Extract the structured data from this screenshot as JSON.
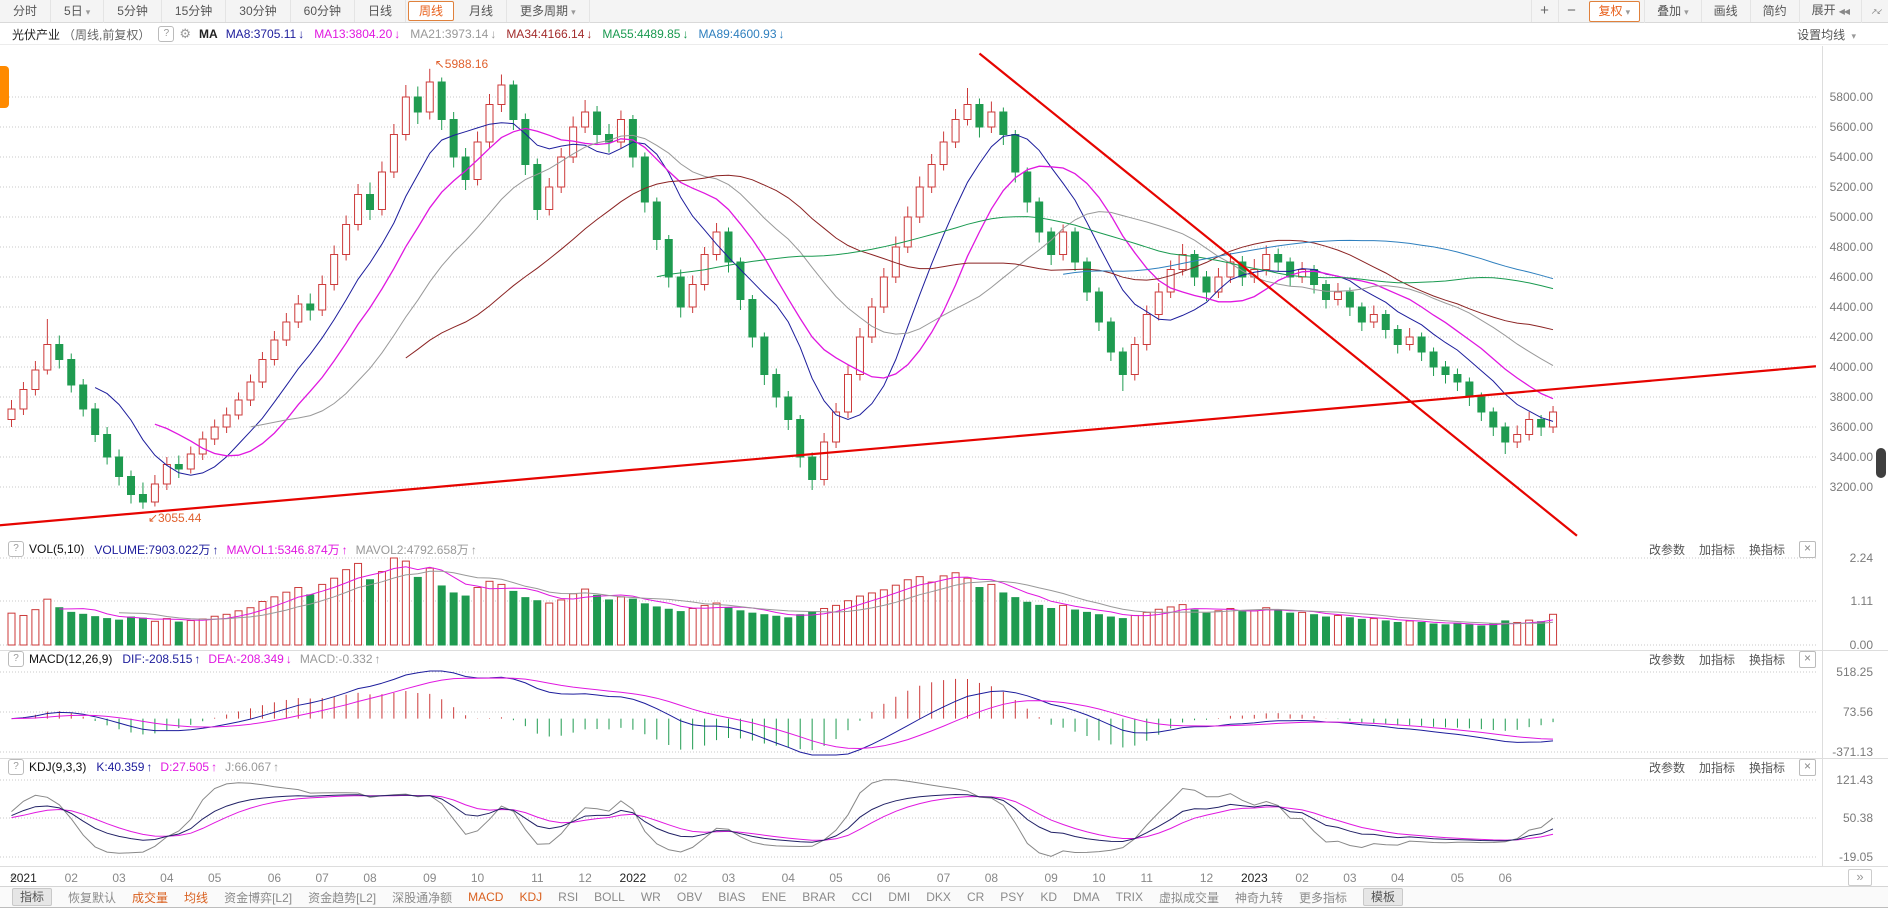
{
  "topbar": {
    "periods": [
      {
        "label": "分时"
      },
      {
        "label": "5日",
        "caret": true
      },
      {
        "label": "5分钟"
      },
      {
        "label": "15分钟"
      },
      {
        "label": "30分钟"
      },
      {
        "label": "60分钟"
      },
      {
        "label": "日线"
      },
      {
        "label": "周线",
        "active": true
      },
      {
        "label": "月线"
      },
      {
        "label": "更多周期",
        "caret": true
      }
    ],
    "zoom_in": "+",
    "zoom_out": "−",
    "right_buttons": [
      {
        "label": "复权",
        "caret": true,
        "accent": true
      },
      {
        "label": "叠加",
        "caret": true
      },
      {
        "label": "画线"
      },
      {
        "label": "简约"
      },
      {
        "label": "展开",
        "expand_icon": true
      }
    ],
    "caret_glyph": "▾",
    "expand_icon": "◀◀",
    "collapse_icon": "↗↙"
  },
  "info_row": {
    "title": "光伏产业",
    "subtitle": "（周线,前复权）",
    "help": "?",
    "gear_icon": "⚙",
    "ma_prefix": "MA",
    "ma_items": [
      {
        "text": "MA8:3705.11",
        "arrow": "↓",
        "color": "#1d1d9c"
      },
      {
        "text": "MA13:3804.20",
        "arrow": "↓",
        "color": "#e018e0"
      },
      {
        "text": "MA21:3973.14",
        "arrow": "↓",
        "color": "#999999"
      },
      {
        "text": "MA34:4166.14",
        "arrow": "↓",
        "color": "#a22c2c"
      },
      {
        "text": "MA55:4489.85",
        "arrow": "↓",
        "color": "#1a9a50"
      },
      {
        "text": "MA89:4600.93",
        "arrow": "↓",
        "color": "#2e7fbe"
      }
    ],
    "right_link": "设置均线"
  },
  "panes": [
    {
      "id": "vol",
      "name": "VOL(5,10)",
      "help": "?",
      "values": [
        {
          "text": "VOLUME:7903.022万",
          "arrow": "↑",
          "color": "#1d1d9c"
        },
        {
          "text": "MAVOL1:5346.874万",
          "arrow": "↑",
          "color": "#e018e0"
        },
        {
          "text": "MAVOL2:4792.658万",
          "arrow": "↑",
          "color": "#999999"
        }
      ],
      "tools": [
        "改参数",
        "加指标",
        "换指标"
      ],
      "close_label": "×",
      "ticks": [
        "2.24",
        "1.11",
        "0.00"
      ]
    },
    {
      "id": "macd",
      "name": "MACD(12,26,9)",
      "help": "?",
      "values": [
        {
          "text": "DIF:-208.515",
          "arrow": "↑",
          "color": "#1d1d9c"
        },
        {
          "text": "DEA:-208.349",
          "arrow": "↓",
          "color": "#e018e0"
        },
        {
          "text": "MACD:-0.332",
          "arrow": "↑",
          "color": "#999999"
        }
      ],
      "tools": [
        "改参数",
        "加指标",
        "换指标"
      ],
      "close_label": "×",
      "ticks": [
        "518.25",
        "73.56",
        "-371.13"
      ]
    },
    {
      "id": "kdj",
      "name": "KDJ(9,3,3)",
      "help": "?",
      "values": [
        {
          "text": "K:40.359",
          "arrow": "↑",
          "color": "#1d1d9c"
        },
        {
          "text": "D:27.505",
          "arrow": "↑",
          "color": "#e018e0"
        },
        {
          "text": "J:66.067",
          "arrow": "↑",
          "color": "#999999"
        }
      ],
      "tools": [
        "改参数",
        "加指标",
        "换指标"
      ],
      "close_label": "×",
      "ticks": [
        "121.43",
        "50.38",
        "-19.05"
      ]
    }
  ],
  "time_axis": {
    "prev": "«",
    "next": "»",
    "labels": [
      {
        "t": "2021",
        "i": 1,
        "year": true
      },
      {
        "t": "02",
        "i": 5
      },
      {
        "t": "03",
        "i": 9
      },
      {
        "t": "04",
        "i": 13
      },
      {
        "t": "05",
        "i": 17
      },
      {
        "t": "06",
        "i": 22
      },
      {
        "t": "07",
        "i": 26
      },
      {
        "t": "08",
        "i": 30
      },
      {
        "t": "09",
        "i": 35
      },
      {
        "t": "10",
        "i": 39
      },
      {
        "t": "11",
        "i": 44
      },
      {
        "t": "12",
        "i": 48
      },
      {
        "t": "2022",
        "i": 52,
        "year": true
      },
      {
        "t": "02",
        "i": 56
      },
      {
        "t": "03",
        "i": 60
      },
      {
        "t": "04",
        "i": 65
      },
      {
        "t": "05",
        "i": 69
      },
      {
        "t": "06",
        "i": 73
      },
      {
        "t": "07",
        "i": 78
      },
      {
        "t": "08",
        "i": 82
      },
      {
        "t": "09",
        "i": 87
      },
      {
        "t": "10",
        "i": 91
      },
      {
        "t": "11",
        "i": 95
      },
      {
        "t": "12",
        "i": 100
      },
      {
        "t": "2023",
        "i": 104,
        "year": true
      },
      {
        "t": "02",
        "i": 108
      },
      {
        "t": "03",
        "i": 112
      },
      {
        "t": "04",
        "i": 116
      },
      {
        "t": "05",
        "i": 121
      },
      {
        "t": "06",
        "i": 125
      }
    ]
  },
  "bottom_bar": {
    "items": [
      {
        "label": "指标",
        "boxed": true
      },
      {
        "label": "恢复默认"
      },
      {
        "label": "成交量",
        "accent": true
      },
      {
        "label": "均线",
        "accent": true
      },
      {
        "label": "资金博弈[L2]"
      },
      {
        "label": "资金趋势[L2]"
      },
      {
        "label": "深股通净额"
      },
      {
        "label": "MACD",
        "accent": true
      },
      {
        "label": "KDJ",
        "accent": true
      },
      {
        "label": "RSI"
      },
      {
        "label": "BOLL"
      },
      {
        "label": "WR"
      },
      {
        "label": "OBV"
      },
      {
        "label": "BIAS"
      },
      {
        "label": "ENE"
      },
      {
        "label": "BRAR"
      },
      {
        "label": "CCI"
      },
      {
        "label": "DMI"
      },
      {
        "label": "DKX"
      },
      {
        "label": "CR"
      },
      {
        "label": "PSY"
      },
      {
        "label": "KD"
      },
      {
        "label": "DMA"
      },
      {
        "label": "TRIX"
      },
      {
        "label": "虚拟成交量"
      },
      {
        "label": "神奇九转"
      },
      {
        "label": "更多指标"
      },
      {
        "label": "模板",
        "boxed": true
      }
    ]
  },
  "colors": {
    "accent_orange": "#e8611c",
    "candle_up": "#cc3a3a",
    "candle_down": "#1f9b50",
    "trend_line": "#e60400",
    "annotation": "#e0612e",
    "navy": "#1d1d9c",
    "magenta": "#e018e0",
    "gray": "#999999",
    "maroon": "#8b2323",
    "green": "#1a9a50",
    "blue": "#2e7fbe"
  },
  "chart_data": {
    "type": "candlestick",
    "title": "光伏产业 周线 前复权",
    "interval": "周线",
    "ylim": [
      2850,
      6150
    ],
    "y_ticks": [
      "5800.00",
      "5600.00",
      "5400.00",
      "5200.00",
      "5000.00",
      "4800.00",
      "4600.00",
      "4400.00",
      "4200.00",
      "4000.00",
      "3800.00",
      "3600.00",
      "3400.00",
      "3200.00"
    ],
    "ma_periods": [
      8,
      13,
      21,
      34,
      55,
      89
    ],
    "vol_ma_periods": [
      5,
      10
    ],
    "macd_params": [
      12,
      26,
      9
    ],
    "kdj_params": [
      9,
      3,
      3
    ],
    "vol_axis": [
      "2.24",
      "1.11",
      "0.00"
    ],
    "vol_axis_max_wan": 22400,
    "macd_axis": [
      518.25,
      73.56,
      -371.13
    ],
    "kdj_axis": [
      121.43,
      50.38,
      -19.05
    ],
    "annotations": [
      {
        "text": "5988.16",
        "price": 5988.16,
        "index": 35,
        "arrow": "↖"
      },
      {
        "text": "3055.44",
        "price": 3055.44,
        "index": 11,
        "arrow": "↙"
      }
    ],
    "trendlines": [
      {
        "from": {
          "index": 81,
          "price": 6090
        },
        "to": {
          "index": 131,
          "price": 2875
        }
      },
      {
        "from": {
          "index": -1,
          "price": 2945
        },
        "to": {
          "index": 151,
          "price": 4005
        }
      }
    ],
    "candles": [
      [
        3650,
        3780,
        3600,
        3720,
        8200
      ],
      [
        3720,
        3900,
        3680,
        3850,
        7600
      ],
      [
        3850,
        4040,
        3810,
        3980,
        9100
      ],
      [
        3980,
        4320,
        3950,
        4150,
        11800
      ],
      [
        4150,
        4210,
        3990,
        4050,
        9600
      ],
      [
        4050,
        4090,
        3830,
        3880,
        8400
      ],
      [
        3880,
        3920,
        3670,
        3720,
        7900
      ],
      [
        3720,
        3760,
        3500,
        3550,
        7300
      ],
      [
        3550,
        3600,
        3350,
        3400,
        6800
      ],
      [
        3400,
        3450,
        3210,
        3270,
        6400
      ],
      [
        3270,
        3310,
        3090,
        3150,
        7200
      ],
      [
        3150,
        3230,
        3055,
        3100,
        6900
      ],
      [
        3100,
        3280,
        3070,
        3220,
        6100
      ],
      [
        3220,
        3400,
        3180,
        3350,
        6800
      ],
      [
        3350,
        3410,
        3260,
        3320,
        5900
      ],
      [
        3320,
        3470,
        3290,
        3420,
        6300
      ],
      [
        3420,
        3570,
        3380,
        3520,
        6700
      ],
      [
        3520,
        3650,
        3480,
        3600,
        7400
      ],
      [
        3600,
        3730,
        3560,
        3680,
        7900
      ],
      [
        3680,
        3830,
        3650,
        3780,
        8800
      ],
      [
        3780,
        3950,
        3740,
        3900,
        9600
      ],
      [
        3900,
        4100,
        3860,
        4050,
        11200
      ],
      [
        4050,
        4240,
        4010,
        4180,
        12400
      ],
      [
        4180,
        4360,
        4140,
        4300,
        13600
      ],
      [
        4300,
        4480,
        4260,
        4420,
        14800
      ],
      [
        4420,
        4490,
        4310,
        4380,
        12900
      ],
      [
        4380,
        4610,
        4340,
        4550,
        15600
      ],
      [
        4550,
        4810,
        4510,
        4750,
        17200
      ],
      [
        4750,
        5010,
        4710,
        4950,
        19400
      ],
      [
        4950,
        5220,
        4910,
        5150,
        21000
      ],
      [
        5150,
        5230,
        4980,
        5050,
        16800
      ],
      [
        5050,
        5370,
        5010,
        5300,
        18900
      ],
      [
        5300,
        5620,
        5260,
        5550,
        22400
      ],
      [
        5550,
        5880,
        5510,
        5800,
        21600
      ],
      [
        5800,
        5870,
        5620,
        5700,
        17400
      ],
      [
        5700,
        5988,
        5650,
        5900,
        19800
      ],
      [
        5900,
        5930,
        5580,
        5650,
        15200
      ],
      [
        5650,
        5700,
        5330,
        5400,
        13400
      ],
      [
        5400,
        5460,
        5180,
        5250,
        12600
      ],
      [
        5250,
        5570,
        5210,
        5500,
        14800
      ],
      [
        5500,
        5820,
        5460,
        5750,
        16400
      ],
      [
        5750,
        5950,
        5700,
        5880,
        15600
      ],
      [
        5880,
        5910,
        5580,
        5650,
        13800
      ],
      [
        5650,
        5690,
        5280,
        5350,
        12200
      ],
      [
        5350,
        5390,
        4980,
        5050,
        11400
      ],
      [
        5050,
        5260,
        5010,
        5200,
        10800
      ],
      [
        5200,
        5460,
        5160,
        5400,
        11600
      ],
      [
        5400,
        5670,
        5360,
        5600,
        13200
      ],
      [
        5600,
        5780,
        5560,
        5700,
        14400
      ],
      [
        5700,
        5740,
        5480,
        5550,
        12800
      ],
      [
        5550,
        5620,
        5430,
        5500,
        11600
      ],
      [
        5500,
        5710,
        5460,
        5650,
        12400
      ],
      [
        5650,
        5680,
        5330,
        5400,
        11800
      ],
      [
        5400,
        5430,
        5030,
        5100,
        10600
      ],
      [
        5100,
        5130,
        4780,
        4850,
        9800
      ],
      [
        4850,
        4880,
        4530,
        4600,
        9200
      ],
      [
        4600,
        4650,
        4330,
        4400,
        8600
      ],
      [
        4400,
        4610,
        4360,
        4550,
        9400
      ],
      [
        4550,
        4800,
        4510,
        4750,
        10200
      ],
      [
        4750,
        4960,
        4710,
        4900,
        10800
      ],
      [
        4900,
        4930,
        4630,
        4700,
        9600
      ],
      [
        4700,
        4730,
        4380,
        4450,
        8800
      ],
      [
        4450,
        4480,
        4130,
        4200,
        8200
      ],
      [
        4200,
        4230,
        3880,
        3950,
        7800
      ],
      [
        3950,
        3990,
        3730,
        3800,
        7400
      ],
      [
        3800,
        3840,
        3580,
        3650,
        7000
      ],
      [
        3650,
        3680,
        3330,
        3400,
        7800
      ],
      [
        3400,
        3430,
        3180,
        3250,
        8600
      ],
      [
        3250,
        3560,
        3210,
        3500,
        9400
      ],
      [
        3500,
        3760,
        3460,
        3700,
        10200
      ],
      [
        3700,
        4010,
        3660,
        3950,
        11400
      ],
      [
        3950,
        4260,
        3910,
        4200,
        12600
      ],
      [
        4200,
        4460,
        4160,
        4400,
        13400
      ],
      [
        4400,
        4660,
        4360,
        4600,
        14200
      ],
      [
        4600,
        4870,
        4560,
        4800,
        15400
      ],
      [
        4800,
        5070,
        4760,
        5000,
        16800
      ],
      [
        5000,
        5270,
        4960,
        5200,
        17600
      ],
      [
        5200,
        5420,
        5160,
        5350,
        16200
      ],
      [
        5350,
        5570,
        5310,
        5500,
        17800
      ],
      [
        5500,
        5720,
        5460,
        5650,
        18600
      ],
      [
        5650,
        5860,
        5610,
        5750,
        17200
      ],
      [
        5750,
        5790,
        5530,
        5600,
        14800
      ],
      [
        5600,
        5770,
        5560,
        5700,
        15600
      ],
      [
        5700,
        5730,
        5480,
        5550,
        13400
      ],
      [
        5550,
        5580,
        5230,
        5300,
        12200
      ],
      [
        5300,
        5330,
        5030,
        5100,
        11000
      ],
      [
        5100,
        5130,
        4830,
        4900,
        10200
      ],
      [
        4900,
        4930,
        4680,
        4750,
        9400
      ],
      [
        4750,
        4950,
        4710,
        4900,
        10200
      ],
      [
        4900,
        4930,
        4640,
        4700,
        9000
      ],
      [
        4700,
        4730,
        4440,
        4500,
        8400
      ],
      [
        4500,
        4530,
        4240,
        4300,
        7800
      ],
      [
        4300,
        4330,
        4040,
        4100,
        7200
      ],
      [
        4100,
        4130,
        3840,
        3950,
        6800
      ],
      [
        3950,
        4200,
        3910,
        4150,
        7600
      ],
      [
        4150,
        4410,
        4110,
        4350,
        8400
      ],
      [
        4350,
        4560,
        4310,
        4500,
        9200
      ],
      [
        4500,
        4710,
        4460,
        4650,
        9800
      ],
      [
        4650,
        4820,
        4610,
        4750,
        10400
      ],
      [
        4750,
        4780,
        4540,
        4600,
        9000
      ],
      [
        4600,
        4640,
        4440,
        4500,
        8200
      ],
      [
        4500,
        4660,
        4460,
        4600,
        8800
      ],
      [
        4600,
        4760,
        4560,
        4700,
        9400
      ],
      [
        4700,
        4740,
        4540,
        4600,
        8600
      ],
      [
        4600,
        4720,
        4560,
        4650,
        8800
      ],
      [
        4650,
        4810,
        4610,
        4750,
        9600
      ],
      [
        4750,
        4790,
        4640,
        4700,
        9000
      ],
      [
        4700,
        4730,
        4540,
        4600,
        8200
      ],
      [
        4600,
        4700,
        4560,
        4650,
        8400
      ],
      [
        4650,
        4680,
        4490,
        4550,
        7800
      ],
      [
        4550,
        4580,
        4390,
        4450,
        7200
      ],
      [
        4450,
        4560,
        4410,
        4500,
        7600
      ],
      [
        4500,
        4530,
        4340,
        4400,
        7000
      ],
      [
        4400,
        4430,
        4240,
        4300,
        6600
      ],
      [
        4300,
        4410,
        4260,
        4350,
        6800
      ],
      [
        4350,
        4380,
        4190,
        4250,
        6200
      ],
      [
        4250,
        4280,
        4090,
        4150,
        5800
      ],
      [
        4150,
        4260,
        4110,
        4200,
        6200
      ],
      [
        4200,
        4230,
        4040,
        4100,
        5800
      ],
      [
        4100,
        4130,
        3940,
        4000,
        5400
      ],
      [
        4000,
        4040,
        3890,
        3950,
        5200
      ],
      [
        3950,
        3990,
        3840,
        3900,
        5600
      ],
      [
        3900,
        3930,
        3740,
        3800,
        5200
      ],
      [
        3800,
        3830,
        3640,
        3700,
        4900
      ],
      [
        3700,
        3730,
        3540,
        3600,
        5400
      ],
      [
        3600,
        3630,
        3420,
        3500,
        6200
      ],
      [
        3500,
        3610,
        3460,
        3550,
        5800
      ],
      [
        3550,
        3700,
        3510,
        3650,
        6400
      ],
      [
        3650,
        3680,
        3540,
        3600,
        6000
      ],
      [
        3600,
        3740,
        3560,
        3700,
        7903
      ]
    ]
  }
}
